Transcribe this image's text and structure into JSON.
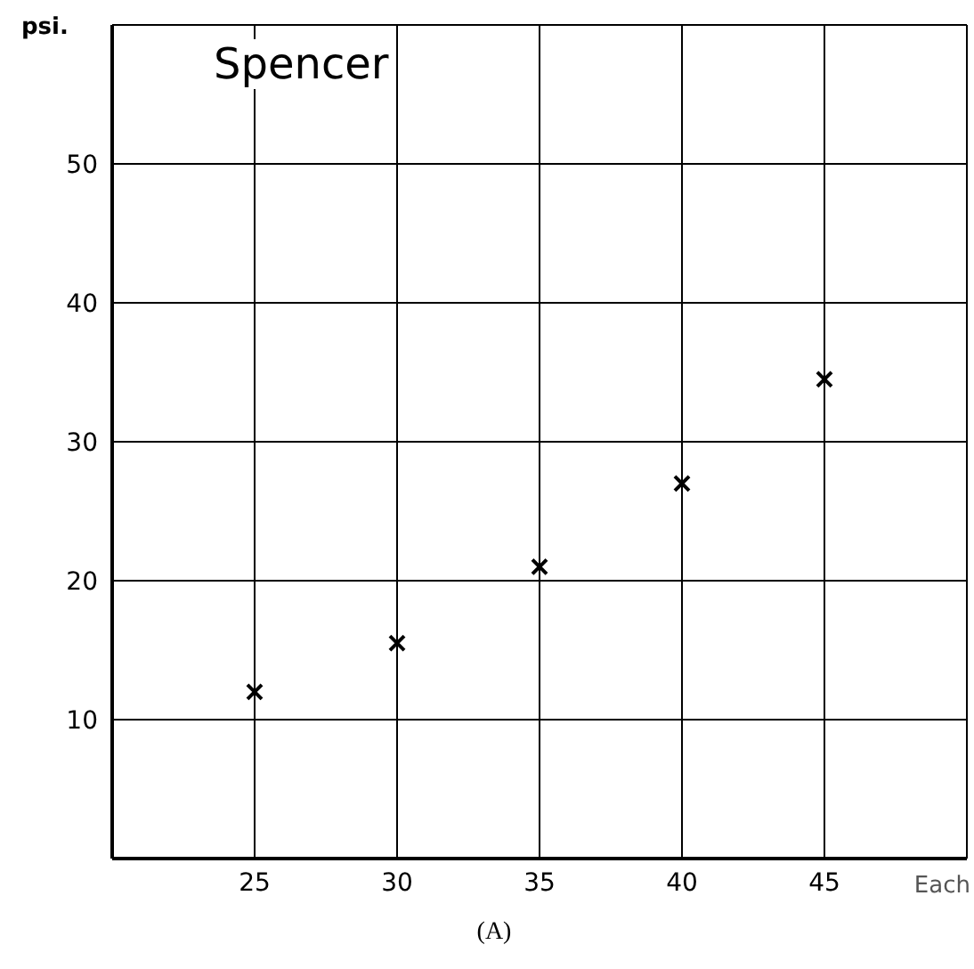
{
  "chart_data": {
    "type": "scatter",
    "title": "Spencer",
    "ylabel": "psi.",
    "xlabel": "Each",
    "annotations": [
      "(A)"
    ],
    "x": [
      25,
      30,
      35,
      40,
      45
    ],
    "series": [
      {
        "color": "#000000",
        "values": [
          12,
          15.5,
          21,
          27,
          34.5
        ]
      }
    ],
    "xlim": [
      20,
      50
    ],
    "xticks": [
      25,
      30,
      35,
      40,
      45
    ],
    "ylim": [
      0,
      60
    ],
    "yticks": [
      10,
      20,
      30,
      40,
      50
    ],
    "grid": true,
    "marker": "cross",
    "legend": false
  }
}
